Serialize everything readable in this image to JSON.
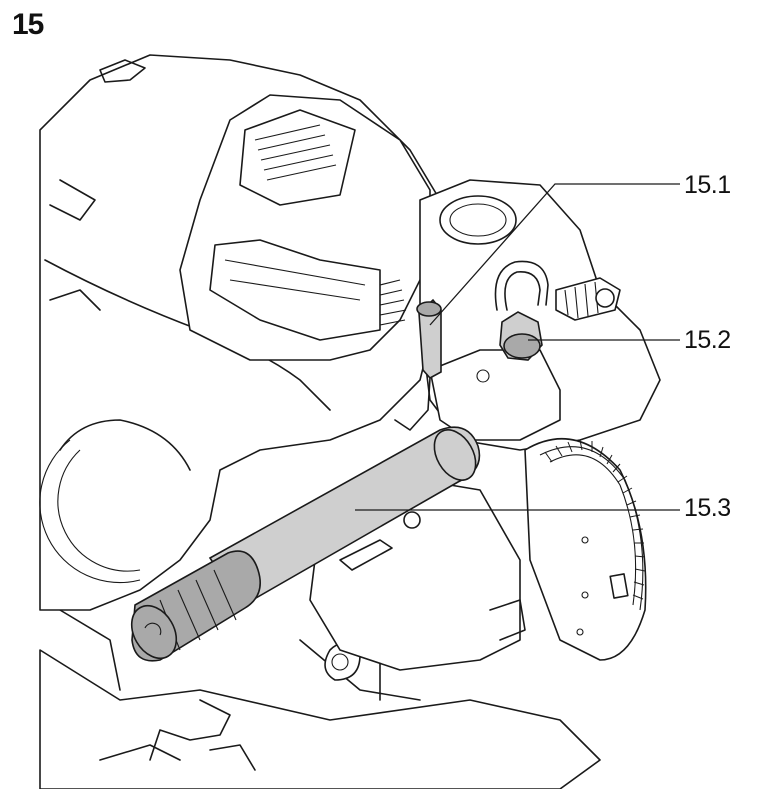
{
  "figure": {
    "number": "15"
  },
  "callouts": [
    {
      "id": "15.1",
      "label": "15.1",
      "part": "locking-pin"
    },
    {
      "id": "15.2",
      "label": "15.2",
      "part": "clamping-knob"
    },
    {
      "id": "15.3",
      "label": "15.3",
      "part": "handle"
    }
  ]
}
